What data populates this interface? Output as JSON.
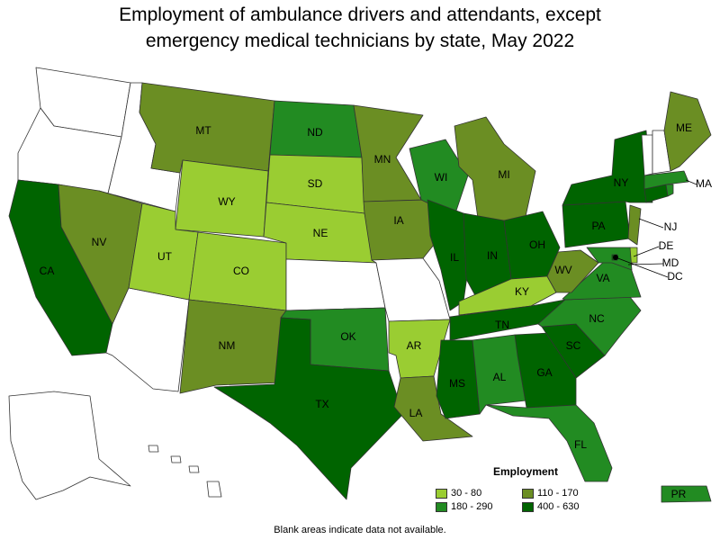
{
  "title_line1": "Employment of ambulance drivers and attendants, except",
  "title_line2": "emergency medical technicians by state, May 2022",
  "legend": {
    "title": "Employment",
    "items": [
      {
        "label": "30 - 80",
        "color": "#9acd32"
      },
      {
        "label": "110 - 170",
        "color": "#6b8e23"
      },
      {
        "label": "180 - 290",
        "color": "#228b22"
      },
      {
        "label": "400 - 630",
        "color": "#006400"
      }
    ]
  },
  "footnote": "Blank areas indicate data not available.",
  "bins": {
    "b1": "30 - 80",
    "b2": "110 - 170",
    "b3": "180 - 290",
    "b4": "400 - 630",
    "none": "no data"
  },
  "states": [
    {
      "abbr": "WA",
      "bin": "none"
    },
    {
      "abbr": "OR",
      "bin": "none"
    },
    {
      "abbr": "CA",
      "bin": "b4"
    },
    {
      "abbr": "ID",
      "bin": "none"
    },
    {
      "abbr": "NV",
      "bin": "b2"
    },
    {
      "abbr": "AZ",
      "bin": "none"
    },
    {
      "abbr": "MT",
      "bin": "b2"
    },
    {
      "abbr": "WY",
      "bin": "b1"
    },
    {
      "abbr": "UT",
      "bin": "b1"
    },
    {
      "abbr": "CO",
      "bin": "b1"
    },
    {
      "abbr": "NM",
      "bin": "b2"
    },
    {
      "abbr": "ND",
      "bin": "b3"
    },
    {
      "abbr": "SD",
      "bin": "b1"
    },
    {
      "abbr": "NE",
      "bin": "b1"
    },
    {
      "abbr": "KS",
      "bin": "none"
    },
    {
      "abbr": "OK",
      "bin": "b3"
    },
    {
      "abbr": "TX",
      "bin": "b4"
    },
    {
      "abbr": "MN",
      "bin": "b2"
    },
    {
      "abbr": "IA",
      "bin": "b2"
    },
    {
      "abbr": "MO",
      "bin": "none"
    },
    {
      "abbr": "AR",
      "bin": "b1"
    },
    {
      "abbr": "LA",
      "bin": "b2"
    },
    {
      "abbr": "WI",
      "bin": "b3"
    },
    {
      "abbr": "IL",
      "bin": "b4"
    },
    {
      "abbr": "MI",
      "bin": "b2"
    },
    {
      "abbr": "IN",
      "bin": "b4"
    },
    {
      "abbr": "OH",
      "bin": "b4"
    },
    {
      "abbr": "KY",
      "bin": "b1"
    },
    {
      "abbr": "TN",
      "bin": "b4"
    },
    {
      "abbr": "MS",
      "bin": "b4"
    },
    {
      "abbr": "AL",
      "bin": "b3"
    },
    {
      "abbr": "GA",
      "bin": "b4"
    },
    {
      "abbr": "FL",
      "bin": "b3"
    },
    {
      "abbr": "SC",
      "bin": "b4"
    },
    {
      "abbr": "NC",
      "bin": "b3"
    },
    {
      "abbr": "VA",
      "bin": "b3"
    },
    {
      "abbr": "WV",
      "bin": "b2"
    },
    {
      "abbr": "PA",
      "bin": "b4"
    },
    {
      "abbr": "NY",
      "bin": "b4"
    },
    {
      "abbr": "NJ",
      "bin": "b2"
    },
    {
      "abbr": "DE",
      "bin": "b1"
    },
    {
      "abbr": "MD",
      "bin": "b3"
    },
    {
      "abbr": "DC",
      "bin": "b4"
    },
    {
      "abbr": "CT",
      "bin": "b4"
    },
    {
      "abbr": "RI",
      "bin": "b3"
    },
    {
      "abbr": "MA",
      "bin": "b3"
    },
    {
      "abbr": "VT",
      "bin": "none"
    },
    {
      "abbr": "NH",
      "bin": "none"
    },
    {
      "abbr": "ME",
      "bin": "b2"
    },
    {
      "abbr": "AK",
      "bin": "none"
    },
    {
      "abbr": "HI",
      "bin": "none"
    },
    {
      "abbr": "PR",
      "bin": "b3"
    }
  ],
  "bin_colors": {
    "b1": "#9acd32",
    "b2": "#6b8e23",
    "b3": "#228b22",
    "b4": "#006400",
    "none": "#ffffff"
  }
}
